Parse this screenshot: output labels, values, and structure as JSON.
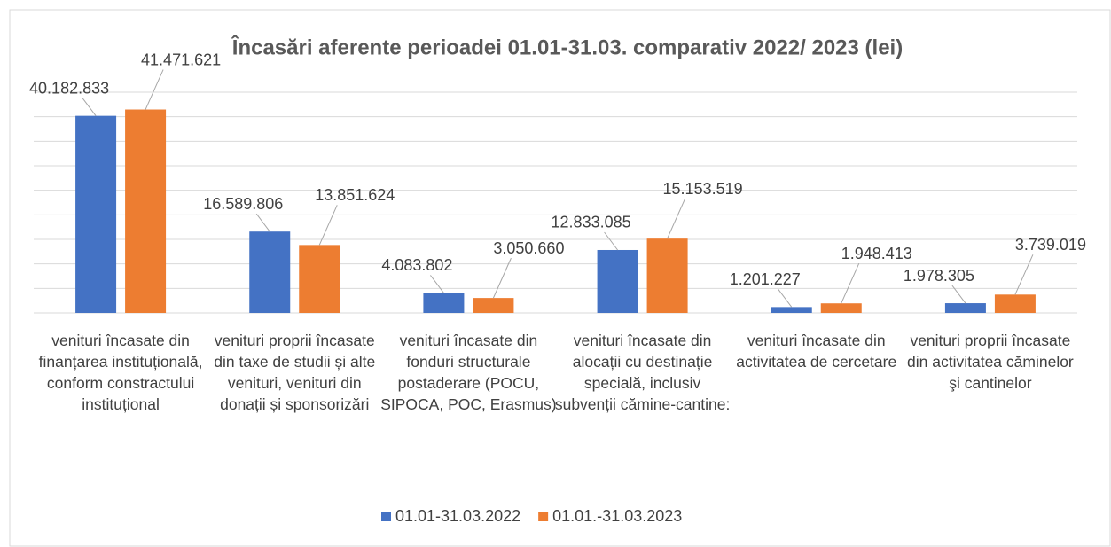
{
  "chart_data": {
    "type": "bar",
    "title": "Încasări aferente perioadei 01.01-31.03. comparativ 2022/ 2023 (lei)",
    "categories": [
      "venituri încasate din finanțarea instituțională, conform constractului instituțional",
      "venituri proprii încasate din taxe de studii și alte venituri, venituri din donații și sponsorizări",
      "venituri încasate din fonduri structurale postaderare (POCU, SIPOCA, POC, Erasmus)",
      "venituri încasate din alocații cu destinație specială, inclusiv subvenții cămine-cantine:",
      "venituri încasate din activitatea de cercetare",
      "venituri proprii încasate din activitatea căminelor şi cantinelor"
    ],
    "series": [
      {
        "name": "01.01-31.03.2022",
        "color": "#4472c4",
        "values": [
          40182833,
          16589806,
          4083802,
          12833085,
          1201227,
          1978305
        ],
        "value_labels": [
          "40.182.833",
          "16.589.806",
          "4.083.802",
          "12.833.085",
          "1.201.227",
          "1.978.305"
        ]
      },
      {
        "name": "01.01.-31.03.2023",
        "color": "#ed7d31",
        "values": [
          41471621,
          13851624,
          3050660,
          15153519,
          1948413,
          3739019
        ],
        "value_labels": [
          "41.471.621",
          "13.851.624",
          "3.050.660",
          "15.153.519",
          "1.948.413",
          "3.739.019"
        ]
      }
    ],
    "ylim": [
      0,
      45000000
    ],
    "yticks": [
      0,
      5000000,
      10000000,
      15000000,
      20000000,
      25000000,
      30000000,
      35000000,
      40000000,
      45000000
    ],
    "grid": true
  }
}
